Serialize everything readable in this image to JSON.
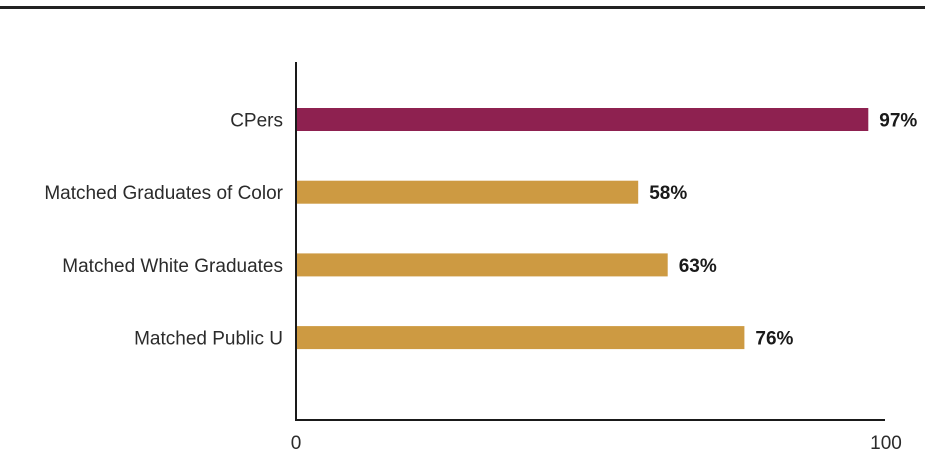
{
  "chart_data": {
    "type": "bar",
    "orientation": "horizontal",
    "categories": [
      "CPers",
      "Matched Graduates of Color",
      "Matched White Graduates",
      "Matched Public U"
    ],
    "values": [
      97,
      58,
      63,
      76
    ],
    "value_labels": [
      "97%",
      "58%",
      "63%",
      "76%"
    ],
    "bar_colors": [
      "#8e2150",
      "#cd9a42",
      "#cd9a42",
      "#cd9a42"
    ],
    "xlim": [
      0,
      100
    ],
    "xticks": [
      0,
      100
    ],
    "xtick_labels": [
      "0",
      "100"
    ],
    "title": "",
    "xlabel": "",
    "ylabel": "",
    "grid": false,
    "legend": "none"
  },
  "colors": {
    "top_rule": "#222222",
    "axis": "#1a1a1a",
    "highlight_bar": "#8e2150",
    "comparison_bar": "#cd9a42"
  }
}
